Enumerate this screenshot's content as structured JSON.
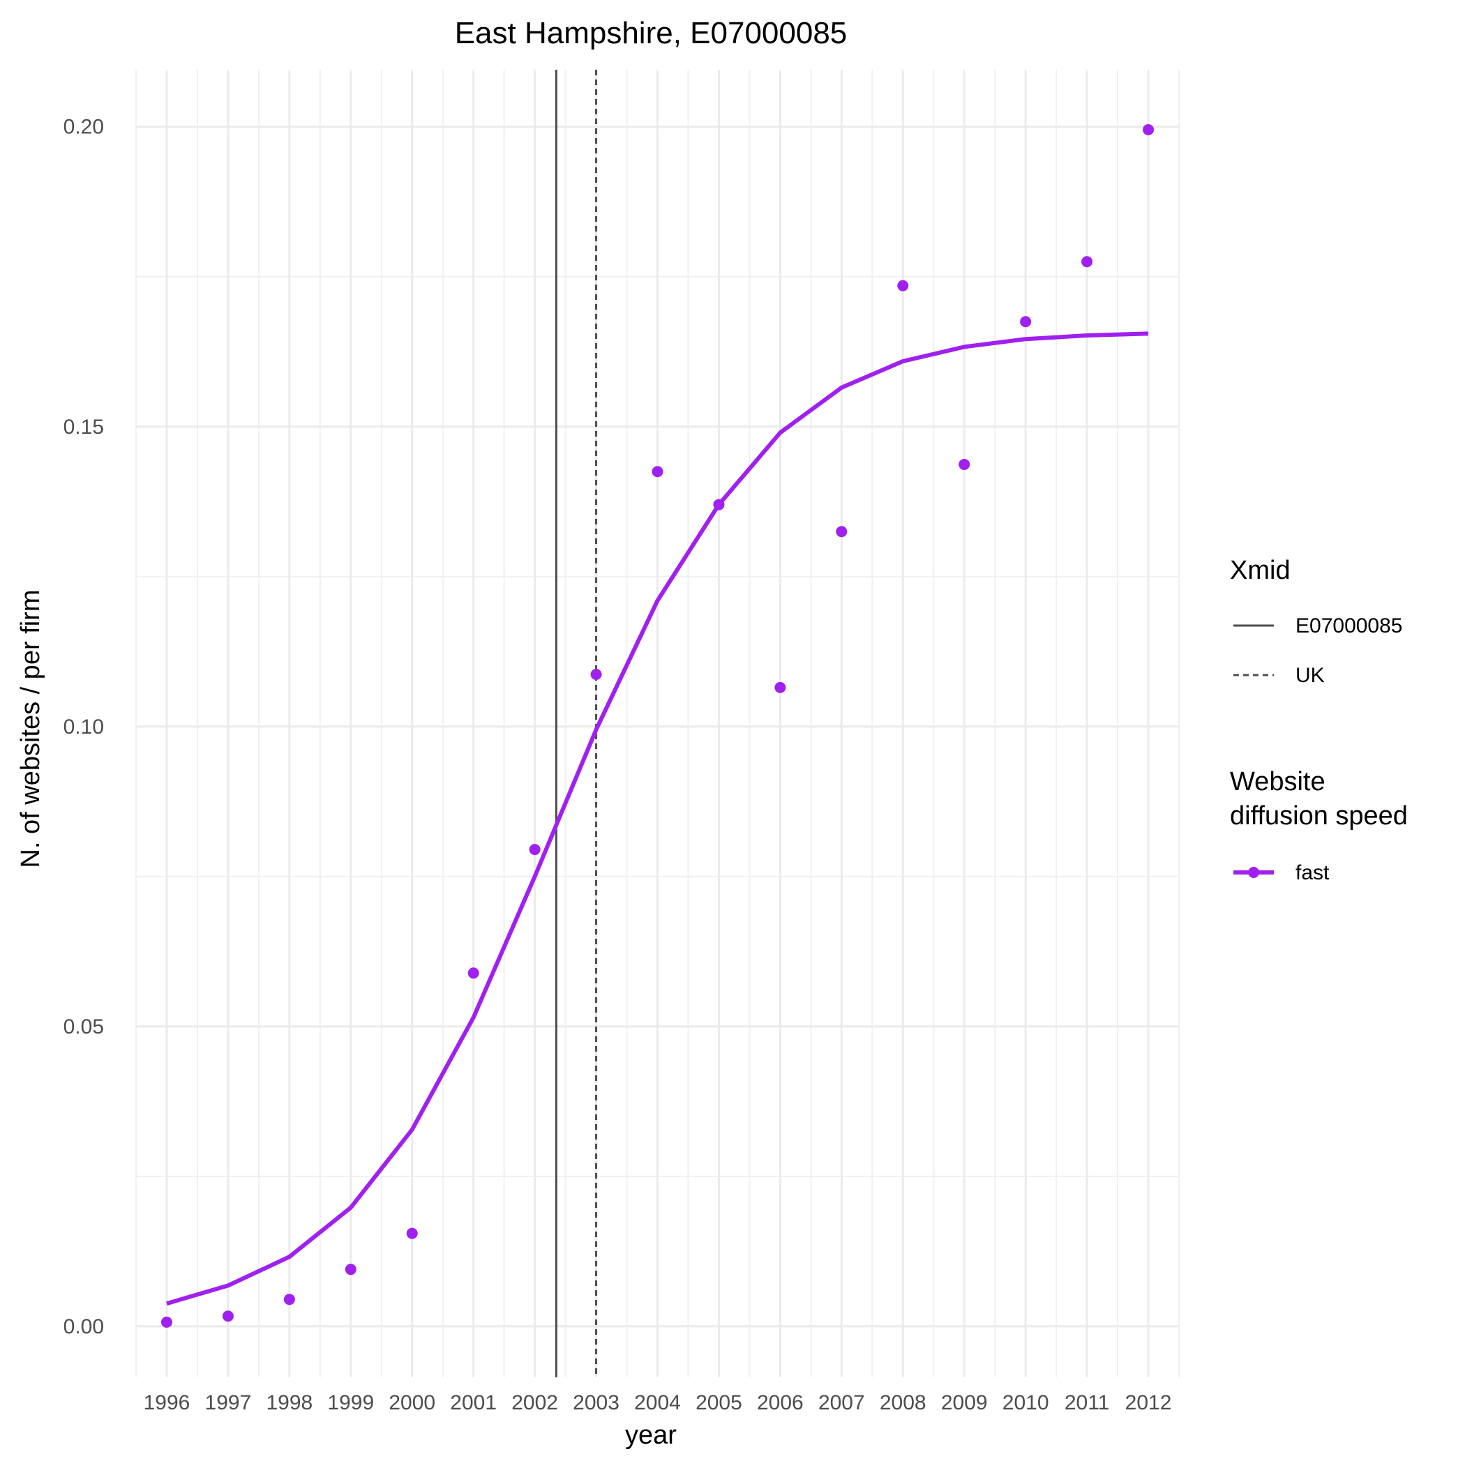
{
  "chart_data": {
    "type": "line",
    "title": "East Hampshire, E07000085",
    "xlabel": "year",
    "ylabel": "N. of websites / per firm",
    "x": [
      1996,
      1997,
      1998,
      1999,
      2000,
      2001,
      2002,
      2003,
      2004,
      2005,
      2006,
      2007,
      2008,
      2009,
      2010,
      2011,
      2012
    ],
    "x_tick_labels": [
      "1996",
      "1997",
      "1998",
      "1999",
      "2000",
      "2001",
      "2002",
      "2003",
      "2004",
      "2005",
      "2006",
      "2007",
      "2008",
      "2009",
      "2010",
      "2011",
      "2012"
    ],
    "y_ticks": [
      0.0,
      0.05,
      0.1,
      0.15,
      0.2
    ],
    "y_tick_labels": [
      "0.00",
      "0.05",
      "0.10",
      "0.15",
      "0.20"
    ],
    "xlim": [
      1995.5,
      2012.5
    ],
    "ylim": [
      -0.0085,
      0.2095
    ],
    "grid": true,
    "series": [
      {
        "name": "fast",
        "color": "#a020f0",
        "points": [
          0.0007,
          0.0017,
          0.0045,
          0.0095,
          0.0155,
          0.0589,
          0.0795,
          0.1087,
          0.1425,
          0.137,
          0.1065,
          0.1325,
          0.1735,
          0.1437,
          0.1675,
          0.1775,
          0.1995
        ],
        "fitted": [
          0.0038,
          0.0068,
          0.0116,
          0.0198,
          0.0328,
          0.0515,
          0.075,
          0.0995,
          0.121,
          0.137,
          0.149,
          0.1565,
          0.1609,
          0.1633,
          0.1646,
          0.1652,
          0.1655
        ]
      }
    ],
    "vlines": [
      {
        "name": "E07000085",
        "x": 2002.35,
        "style": "solid",
        "color": "#4d4d4d"
      },
      {
        "name": "UK",
        "x": 2003.0,
        "style": "dashed",
        "color": "#4d4d4d"
      }
    ],
    "legends": [
      {
        "title": "Xmid",
        "entries": [
          "E07000085",
          "UK"
        ]
      },
      {
        "title_lines": [
          "Website",
          "diffusion speed"
        ],
        "entries": [
          "fast"
        ]
      }
    ],
    "legend_position": "right"
  }
}
